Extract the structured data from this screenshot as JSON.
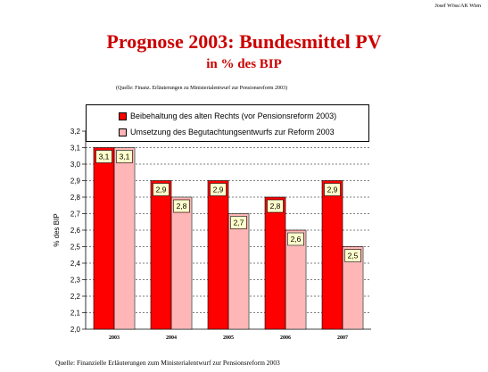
{
  "header": {
    "author": "Josef Wöss/AK Wien"
  },
  "title": "Prognose 2003: Bundesmittel PV",
  "subtitle": "in % des BIP",
  "source_top": "(Quelle: Finanz. Erläuterungen zu Ministerialentwurf zur Pensionsreform 2003)",
  "source_bottom": "Quelle: Finanzielle Erläuterungen zum Ministerialentwurf zur Pensionsreform 2003",
  "colors": {
    "series1": "#ff0000",
    "series2_dots": "#ff0000",
    "label_bg": "#ffffcc",
    "title": "#cc0000"
  },
  "chart_data": {
    "type": "bar",
    "categories": [
      "2003",
      "2004",
      "2005",
      "2006",
      "2007"
    ],
    "series": [
      {
        "name": "Beibehaltung des alten Rechts (vor Pensionsreform 2003)",
        "values": [
          3.1,
          2.9,
          2.9,
          2.8,
          2.9
        ],
        "labels": [
          "3,1",
          "2,9",
          "2,9",
          "2,8",
          "2,9"
        ]
      },
      {
        "name": "Umsetzung des Begutachtungsentwurfs zur Reform 2003",
        "values": [
          3.1,
          2.8,
          2.7,
          2.6,
          2.5
        ],
        "labels": [
          "3,1",
          "2,8",
          "2,7",
          "2,6",
          "2,5"
        ]
      }
    ],
    "ylabel": "% des BIP",
    "ylim": [
      2.0,
      3.2
    ],
    "yticks": [
      "2,0",
      "2,1",
      "2,2",
      "2,3",
      "2,4",
      "2,5",
      "2,6",
      "2,7",
      "2,8",
      "2,9",
      "3,0",
      "3,1",
      "3,2"
    ],
    "grid": true,
    "legend_position": "top"
  }
}
